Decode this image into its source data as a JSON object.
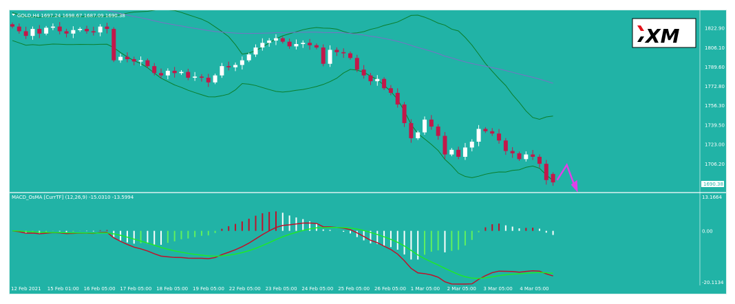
{
  "colors": {
    "background": "#21b3a6",
    "bull_candle": "#ffffff",
    "bear_candle": "#c2184a",
    "bollinger": "#0b7d2a",
    "moving_average": "#7a6fc6",
    "macd_signal_line": "#c0102a",
    "macd_main_line": "#1ee82a",
    "hist_positive_up": "#c0102a",
    "hist_positive_down": "#ffffff",
    "hist_negative_down": "#ffffff",
    "hist_negative_up": "#5ff05f",
    "projection_arrow": "#e040e8",
    "separator": "#ffffff"
  },
  "main_panel": {
    "header": "GOLD,H4  1697.24 1698.67 1687.09 1690.38",
    "current_price_label": "1690.38",
    "price_axis_labels": [
      "1822.90",
      "1806.10",
      "1789.60",
      "1772.80",
      "1756.30",
      "1739.50",
      "1723.00",
      "1706.20"
    ]
  },
  "macd_panel": {
    "header": "MACD_OsMA [CurrTF] (12,26,9) -15.0310 -13.5994",
    "axis_labels": [
      "13.1664",
      "0.00",
      "-20.1134"
    ]
  },
  "time_axis_labels": [
    "12 Feb 2021",
    "15 Feb 01:00",
    "16 Feb 05:00",
    "17 Feb 05:00",
    "18 Feb 05:00",
    "19 Feb 05:00",
    "22 Feb 05:00",
    "23 Feb 05:00",
    "24 Feb 05:00",
    "25 Feb 05:00",
    "26 Feb 05:00",
    "1 Mar 05:00",
    "2 Mar 05:00",
    "3 Mar 05:00",
    "4 Mar 05:00"
  ],
  "logo": {
    "text": "XM",
    "icon": "xm-logo"
  },
  "icons": {
    "header_dropdown": "triangle-down-icon",
    "projection": "zigzag-arrow-icon"
  },
  "chart_data": {
    "type": "candlestick",
    "symbol": "GOLD",
    "timeframe": "H4",
    "ohlc_latest": {
      "open": 1697.24,
      "high": 1698.67,
      "low": 1687.09,
      "close": 1690.38
    },
    "y_range": [
      1683,
      1838
    ],
    "approx_closes": [
      1824,
      1820,
      1816,
      1822,
      1818,
      1823,
      1824,
      1820,
      1818,
      1821,
      1822,
      1820,
      1819,
      1824,
      1822,
      1795,
      1798,
      1796,
      1794,
      1795,
      1790,
      1784,
      1782,
      1786,
      1784,
      1785,
      1780,
      1781,
      1780,
      1776,
      1782,
      1790,
      1789,
      1791,
      1795,
      1800,
      1806,
      1810,
      1812,
      1814,
      1811,
      1807,
      1809,
      1810,
      1808,
      1806,
      1792,
      1804,
      1802,
      1801,
      1797,
      1787,
      1782,
      1777,
      1779,
      1771,
      1767,
      1757,
      1741,
      1728,
      1733,
      1744,
      1738,
      1730,
      1714,
      1718,
      1712,
      1720,
      1725,
      1736,
      1734,
      1732,
      1726,
      1717,
      1715,
      1710,
      1714,
      1712,
      1706,
      1692,
      1690
    ],
    "macd_histogram_range": [
      -20.1134,
      13.1664
    ],
    "macd_last_values": [
      -15.031,
      -13.5994
    ],
    "projection": "up-then-down"
  }
}
